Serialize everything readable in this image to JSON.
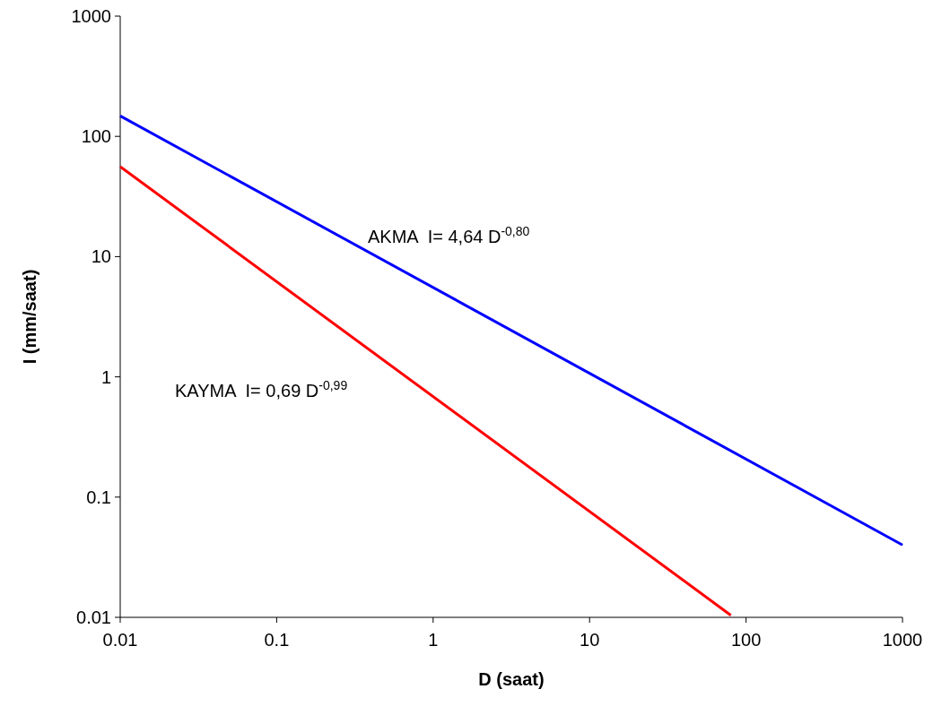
{
  "chart_data": {
    "type": "line",
    "xlabel": "D (saat)",
    "ylabel": "I (mm/saat)",
    "log": "xy",
    "grid": false,
    "marker": "none",
    "line_style": "solid",
    "xlim": [
      0.01,
      1000
    ],
    "xticks": [
      0.01,
      0.1,
      1,
      10,
      100,
      1000
    ],
    "ylim": [
      0.01,
      1000
    ],
    "yticks": [
      0.01,
      0.1,
      1,
      10,
      100,
      1000
    ],
    "series": [
      {
        "x": [
          0.01,
          1000
        ],
        "values": [
          148,
          0.04
        ],
        "color": "#0000ff"
      },
      {
        "x": [
          0.01,
          80
        ],
        "values": [
          56,
          0.0104
        ],
        "color": "#ff0000"
      }
    ],
    "annotations": [
      "AKMA  I= 4,64 D$^{-0,80}$",
      "KAYMA  I= 0,69 D$^{-0,99}$"
    ]
  }
}
